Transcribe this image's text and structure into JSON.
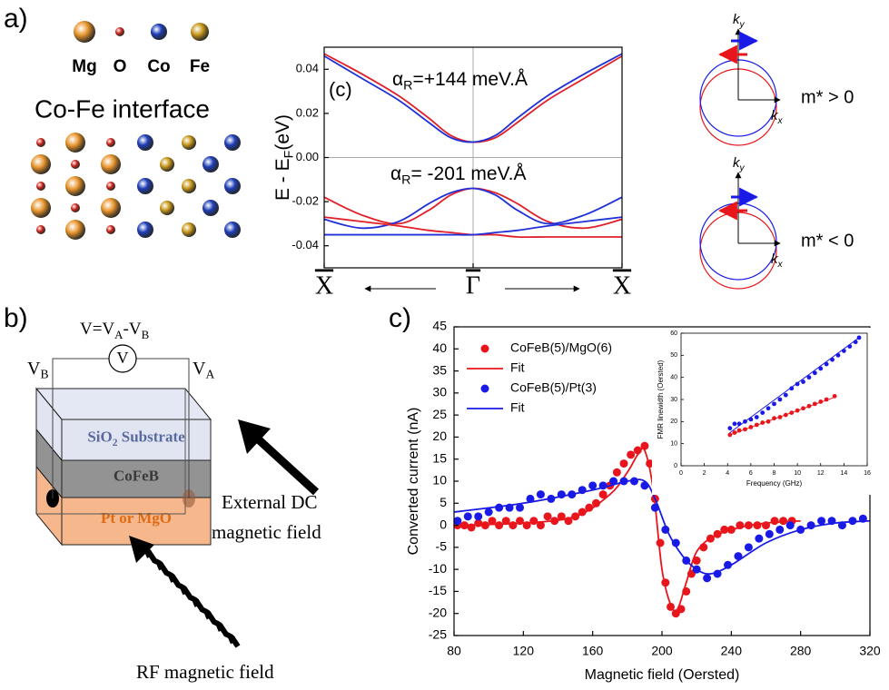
{
  "panel_labels": [
    "a)",
    "b)",
    "c)"
  ],
  "atoms": {
    "legend": [
      {
        "label": "Mg",
        "color": "#e8952c"
      },
      {
        "label": "O",
        "color": "#d42a20"
      },
      {
        "label": "Co",
        "color": "#1f3fb8"
      },
      {
        "label": "Fe",
        "color": "#c99a1c"
      }
    ],
    "title": "Co-Fe interface"
  },
  "dispersion_sketches": [
    {
      "ky": [
        "k",
        "y"
      ],
      "kx": [
        "k",
        "x"
      ],
      "label": "m* > 0"
    },
    {
      "ky": [
        "k",
        "y"
      ],
      "kx": [
        "k",
        "x"
      ],
      "label": "m* < 0"
    }
  ],
  "device": {
    "formula": [
      "V=V",
      "A",
      "-V",
      "B"
    ],
    "meter": "V",
    "left_probe": [
      "V",
      "B"
    ],
    "right_probe": [
      "V",
      "A"
    ],
    "layers": [
      [
        "SiO",
        "2",
        " Substrate"
      ],
      [
        "CoFeB"
      ],
      [
        "Pt or MgO"
      ]
    ],
    "dc_field": [
      "External DC",
      "magnetic field"
    ],
    "rf_field": "RF magnetic field"
  },
  "chart_data": [
    {
      "type": "line",
      "ylabel": [
        "E - E",
        "F",
        "(eV)"
      ],
      "annotations": [
        "(c)"
      ],
      "alpha_labels": [
        [
          "α",
          "R",
          "=+144 meV.Å"
        ],
        [
          "α",
          "R",
          "= -201 meV.Å"
        ]
      ],
      "xlim": [
        -1,
        1
      ],
      "xticks": [
        {
          "value": -1,
          "label": "X"
        },
        {
          "value": 0,
          "label": "Γ"
        },
        {
          "value": 1,
          "label": "X"
        }
      ],
      "ylim": [
        -0.05,
        0.05
      ],
      "yticks": [
        -0.04,
        -0.02,
        {
          "value": 0,
          "label": "0.00"
        },
        0.02,
        0.04
      ],
      "zero_lines": true,
      "series": [
        {
          "color": "#e0202a",
          "mode": "line",
          "x": [
            -1,
            -0.75,
            -0.5,
            -0.3,
            -0.15,
            0,
            0.15,
            0.3,
            0.5,
            0.75,
            1
          ],
          "values": [
            0.047,
            0.038,
            0.028,
            0.018,
            0.01,
            0.007,
            0.009,
            0.016,
            0.026,
            0.036,
            0.046
          ]
        },
        {
          "color": "#2030d8",
          "mode": "line",
          "x": [
            -1,
            -0.75,
            -0.5,
            -0.3,
            -0.15,
            0,
            0.15,
            0.3,
            0.5,
            0.75,
            1
          ],
          "values": [
            0.046,
            0.036,
            0.026,
            0.016,
            0.009,
            0.007,
            0.01,
            0.018,
            0.028,
            0.038,
            0.047
          ]
        },
        {
          "color": "#e0202a",
          "mode": "line",
          "x": [
            -1,
            -0.75,
            -0.5,
            -0.3,
            -0.15,
            0,
            0.15,
            0.3,
            0.5,
            0.75,
            1
          ],
          "values": [
            -0.018,
            -0.026,
            -0.03,
            -0.024,
            -0.017,
            -0.014,
            -0.016,
            -0.021,
            -0.029,
            -0.032,
            -0.028
          ]
        },
        {
          "color": "#2030d8",
          "mode": "line",
          "x": [
            -1,
            -0.75,
            -0.5,
            -0.3,
            -0.15,
            0,
            0.15,
            0.3,
            0.5,
            0.75,
            1
          ],
          "values": [
            -0.028,
            -0.032,
            -0.029,
            -0.021,
            -0.016,
            -0.014,
            -0.017,
            -0.024,
            -0.03,
            -0.026,
            -0.018
          ]
        },
        {
          "color": "#e0202a",
          "mode": "line",
          "x": [
            -1,
            -0.75,
            -0.5,
            -0.3,
            -0.15,
            0,
            0.15,
            0.3,
            0.5,
            0.75,
            1
          ],
          "values": [
            -0.027,
            -0.029,
            -0.031,
            -0.033,
            -0.034,
            -0.035,
            -0.035,
            -0.036,
            -0.036,
            -0.036,
            -0.036
          ]
        },
        {
          "color": "#2030d8",
          "mode": "line",
          "x": [
            -1,
            -0.75,
            -0.5,
            -0.3,
            -0.15,
            0,
            0.15,
            0.3,
            0.5,
            0.75,
            1
          ],
          "values": [
            -0.035,
            -0.035,
            -0.035,
            -0.035,
            -0.035,
            -0.035,
            -0.034,
            -0.033,
            -0.031,
            -0.029,
            -0.027
          ]
        }
      ]
    },
    {
      "type": "scatter",
      "xlabel": "Magnetic field (Oersted)",
      "ylabel": "Converted current (nA)",
      "xlim": [
        80,
        320
      ],
      "xticks": [
        80,
        120,
        160,
        200,
        240,
        280,
        320
      ],
      "ylim": [
        -25,
        45
      ],
      "yticks": [
        -25,
        -20,
        -15,
        -10,
        -5,
        0,
        5,
        10,
        15,
        20,
        25,
        30,
        35,
        40,
        45
      ],
      "legend": "upper left",
      "series": [
        {
          "name": "CoFeB(5)/MgO(6)",
          "color": "#e8161c",
          "mode": "markers",
          "x": [
            82,
            86,
            90,
            94,
            98,
            102,
            106,
            110,
            114,
            118,
            122,
            126,
            130,
            134,
            138,
            142,
            146,
            150,
            154,
            158,
            162,
            166,
            170,
            174,
            178,
            182,
            186,
            190,
            193,
            196,
            199,
            202,
            205,
            208,
            211,
            214,
            217,
            220,
            224,
            228,
            232,
            236,
            240,
            245,
            250,
            255,
            260,
            265,
            270,
            275
          ],
          "values": [
            0,
            0,
            -0.5,
            0.5,
            0,
            1,
            0,
            1,
            0,
            1,
            0,
            1,
            0,
            2,
            1,
            2,
            1,
            2,
            3,
            4,
            5,
            7,
            9,
            12,
            14,
            16,
            17,
            18,
            14,
            6,
            -4,
            -13,
            -18.5,
            -20,
            -19,
            -15,
            -11,
            -8,
            -5,
            -3,
            -2,
            -1,
            -1,
            0,
            0,
            0,
            0,
            1,
            1,
            1
          ]
        },
        {
          "name": "Fit",
          "color": "#e8161c",
          "mode": "line",
          "x": [
            80,
            120,
            150,
            170,
            180,
            186,
            190,
            195,
            200,
            205,
            209,
            214,
            220,
            230,
            245,
            260,
            280
          ],
          "values": [
            0,
            0.5,
            2,
            7,
            12,
            16,
            17,
            8,
            -10,
            -18,
            -19,
            -13,
            -6,
            -2.5,
            -0.5,
            0.5,
            1
          ]
        },
        {
          "name": "CoFeB(5)/Pt(3)",
          "color": "#1a1ae6",
          "mode": "markers",
          "x": [
            82,
            88,
            94,
            100,
            106,
            112,
            118,
            124,
            130,
            136,
            142,
            148,
            154,
            160,
            166,
            172,
            178,
            184,
            190,
            196,
            202,
            208,
            214,
            220,
            226,
            232,
            238,
            244,
            250,
            256,
            262,
            268,
            274,
            280,
            286,
            292,
            298,
            304,
            310,
            316
          ],
          "values": [
            1,
            2,
            2,
            3,
            4,
            4,
            4,
            6,
            7,
            6,
            7,
            7,
            8,
            9,
            9,
            10,
            10,
            10,
            9,
            4,
            -1,
            -4,
            -8,
            -10,
            -12,
            -11,
            -9,
            -7,
            -5,
            -3,
            -2,
            -1,
            0,
            -1,
            0,
            1,
            1,
            0,
            1,
            1.5
          ]
        },
        {
          "name": "Fit",
          "color": "#1a1ae6",
          "mode": "line",
          "x": [
            80,
            120,
            160,
            180,
            190,
            196,
            204,
            212,
            220,
            228,
            240,
            260,
            280,
            300,
            320
          ],
          "values": [
            3,
            5,
            8,
            10,
            10,
            6,
            -2,
            -7,
            -10,
            -11,
            -9,
            -4,
            -1,
            0.5,
            1
          ]
        }
      ]
    },
    {
      "type": "scatter",
      "xlabel": "Frequency (GHz)",
      "ylabel": "FMR linewidth (Oersted)",
      "xlim": [
        0,
        16
      ],
      "xticks": [
        0,
        2,
        4,
        6,
        8,
        10,
        12,
        14,
        16
      ],
      "ylim": [
        0,
        60
      ],
      "yticks": [
        0,
        10,
        20,
        30,
        40,
        50,
        60
      ],
      "series": [
        {
          "color": "#e8161c",
          "mode": "markers",
          "x": [
            4.2,
            4.6,
            5,
            5.5,
            6,
            6.5,
            7,
            7.5,
            8,
            8.5,
            9,
            9.5,
            10,
            10.5,
            11,
            11.5,
            12,
            12.5,
            13.2
          ],
          "values": [
            14,
            15,
            16,
            16.5,
            17.5,
            18.5,
            19.5,
            20,
            21.5,
            22,
            23,
            24,
            25,
            26,
            27,
            28,
            29,
            30,
            31.5
          ]
        },
        {
          "color": "#e8161c",
          "mode": "line",
          "x": [
            4.2,
            13.2
          ],
          "values": [
            14,
            31
          ]
        },
        {
          "color": "#1a1ae6",
          "mode": "markers",
          "x": [
            4.2,
            4.6,
            5,
            5.5,
            6,
            6.5,
            7,
            7.5,
            8,
            8.5,
            9,
            9.5,
            10,
            10.5,
            11,
            11.5,
            12,
            12.5,
            13,
            13.5,
            14,
            14.5,
            15,
            15.3
          ],
          "values": [
            17,
            19,
            19,
            20,
            21,
            22,
            24,
            26,
            28,
            30,
            32,
            35,
            37,
            38,
            40,
            42,
            44,
            46,
            48,
            50,
            52,
            54,
            56,
            58
          ]
        },
        {
          "color": "#1a1ae6",
          "mode": "line",
          "x": [
            4.2,
            15.3
          ],
          "values": [
            15,
            58
          ]
        }
      ]
    }
  ]
}
